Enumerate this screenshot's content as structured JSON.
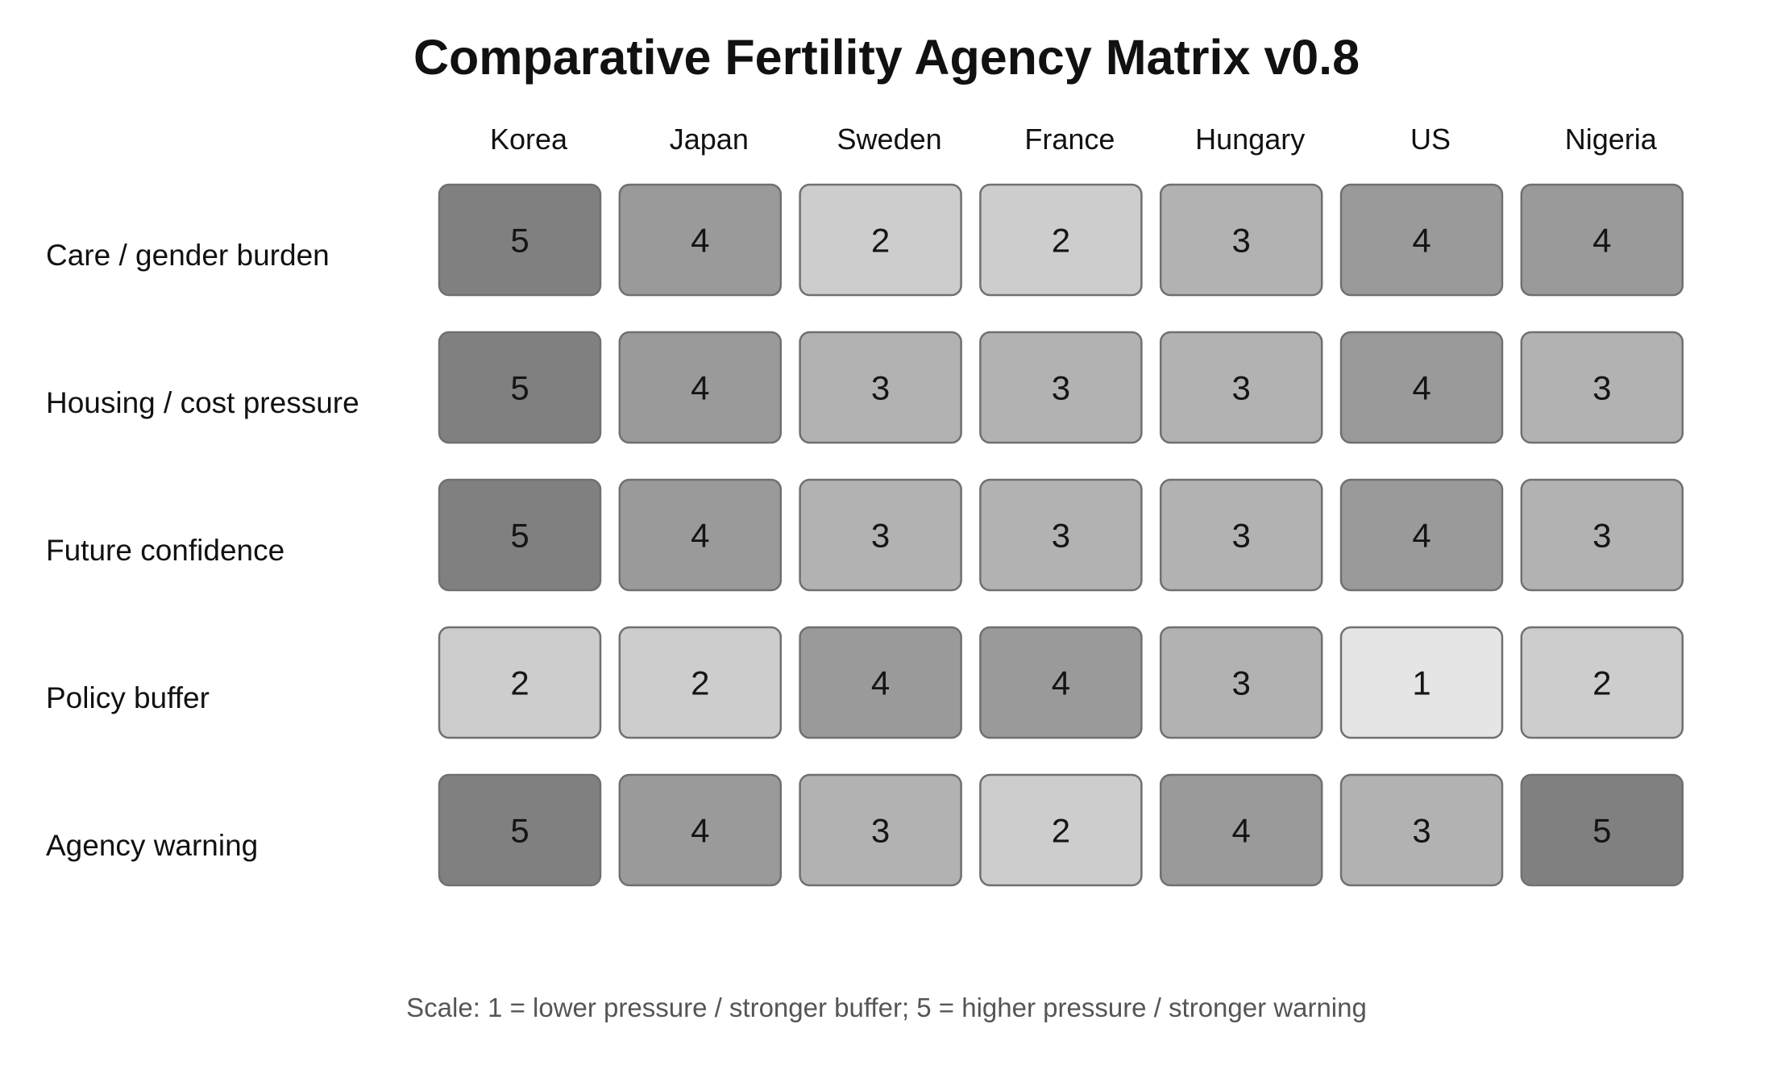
{
  "chart_data": {
    "type": "heatmap",
    "title": "Comparative Fertility Agency Matrix v0.8",
    "columns": [
      "Korea",
      "Japan",
      "Sweden",
      "France",
      "Hungary",
      "US",
      "Nigeria"
    ],
    "rows": [
      {
        "label": "Care / gender burden",
        "values": [
          5,
          4,
          2,
          2,
          3,
          4,
          4
        ]
      },
      {
        "label": "Housing / cost pressure",
        "values": [
          5,
          4,
          3,
          3,
          3,
          4,
          3
        ]
      },
      {
        "label": "Future confidence",
        "values": [
          5,
          4,
          3,
          3,
          3,
          4,
          3
        ]
      },
      {
        "label": "Policy buffer",
        "values": [
          2,
          2,
          4,
          4,
          3,
          1,
          2
        ]
      },
      {
        "label": "Agency warning",
        "values": [
          5,
          4,
          3,
          2,
          4,
          3,
          5
        ]
      }
    ],
    "scale": {
      "min": 1,
      "max": 5,
      "colors": {
        "1": "#e5e5e5",
        "2": "#cdcdcd",
        "3": "#b2b2b2",
        "4": "#9a9a9a",
        "5": "#808080"
      }
    },
    "note": "Scale: 1 = lower pressure / stronger buffer; 5 = higher pressure / stronger warning"
  }
}
